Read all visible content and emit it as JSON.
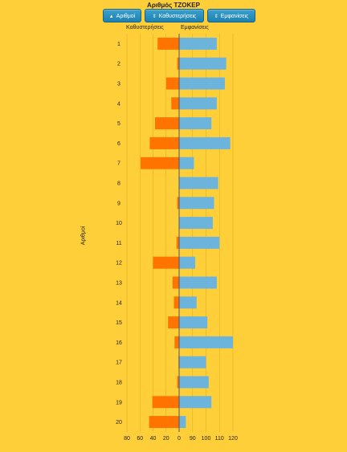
{
  "colors": {
    "background": "#ffcf3a",
    "negative_series": "#ff7300",
    "positive_series": "#6cb4dc",
    "button": "#2a92c0"
  },
  "controls": {
    "buttons": [
      {
        "label": "Αριθμοί",
        "icon": "sort-up-icon"
      },
      {
        "label": "Καθυστερήσεις",
        "icon": "sort-both-icon"
      },
      {
        "label": "Εμφανίσεις",
        "icon": "sort-both-icon"
      }
    ]
  },
  "chart_data": {
    "type": "bar",
    "orientation": "horizontal",
    "title": "Αριθμός ΤΖΟΚΕΡ",
    "ylabel": "Αριθμοί",
    "left_header": "Καθυστερήσεις",
    "right_header": "Εμφανίσεις",
    "categories": [
      "1",
      "2",
      "3",
      "4",
      "5",
      "6",
      "7",
      "8",
      "9",
      "10",
      "11",
      "12",
      "13",
      "14",
      "15",
      "16",
      "17",
      "18",
      "19",
      "20"
    ],
    "series": [
      {
        "name": "Καθυστερήσεις",
        "side": "left",
        "values": [
          33,
          3,
          20,
          12,
          37,
          45,
          59,
          0,
          3,
          0,
          4,
          40,
          10,
          8,
          17,
          7,
          1,
          3,
          41,
          46
        ]
      },
      {
        "name": "Εμφανίσεις",
        "side": "right",
        "values": [
          108,
          115,
          114,
          108,
          104,
          118,
          91,
          109,
          106,
          105,
          110,
          92,
          108,
          93,
          101,
          120,
          100,
          102,
          104,
          85
        ]
      }
    ],
    "left_ticks": [
      "80",
      "60",
      "40",
      "20",
      "0"
    ],
    "right_ticks": [
      "90",
      "100",
      "110",
      "120"
    ],
    "left_range": [
      0,
      80
    ],
    "right_range": [
      80,
      120
    ],
    "grid": true
  }
}
